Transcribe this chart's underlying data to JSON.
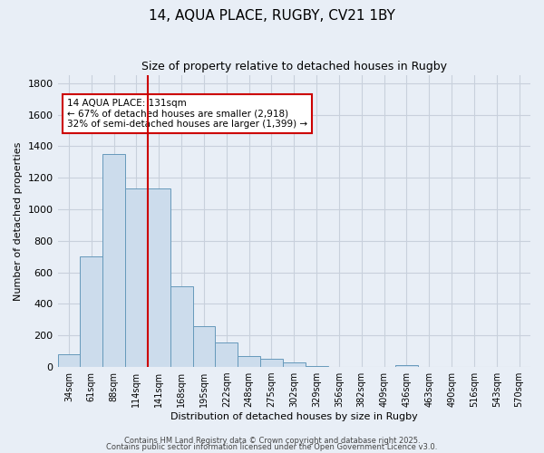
{
  "title1": "14, AQUA PLACE, RUGBY, CV21 1BY",
  "title2": "Size of property relative to detached houses in Rugby",
  "xlabel": "Distribution of detached houses by size in Rugby",
  "ylabel": "Number of detached properties",
  "categories": [
    "34sqm",
    "61sqm",
    "88sqm",
    "114sqm",
    "141sqm",
    "168sqm",
    "195sqm",
    "222sqm",
    "248sqm",
    "275sqm",
    "302sqm",
    "329sqm",
    "356sqm",
    "382sqm",
    "409sqm",
    "436sqm",
    "463sqm",
    "490sqm",
    "516sqm",
    "543sqm",
    "570sqm"
  ],
  "values": [
    80,
    700,
    1350,
    1130,
    1130,
    510,
    260,
    155,
    70,
    50,
    30,
    5,
    0,
    0,
    0,
    10,
    0,
    0,
    0,
    0,
    0
  ],
  "bar_color": "#ccdcec",
  "bar_edge_color": "#6699bb",
  "redline_x": 3.5,
  "annotation_text": "14 AQUA PLACE: 131sqm\n← 67% of detached houses are smaller (2,918)\n32% of semi-detached houses are larger (1,399) →",
  "annotation_box_color": "#ffffff",
  "annotation_box_edge": "#cc0000",
  "redline_color": "#cc0000",
  "ylim": [
    0,
    1850
  ],
  "yticks": [
    0,
    200,
    400,
    600,
    800,
    1000,
    1200,
    1400,
    1600,
    1800
  ],
  "grid_color": "#c8d0dc",
  "bg_color": "#e8eef6",
  "footer1": "Contains HM Land Registry data © Crown copyright and database right 2025.",
  "footer2": "Contains public sector information licensed under the Open Government Licence v3.0."
}
